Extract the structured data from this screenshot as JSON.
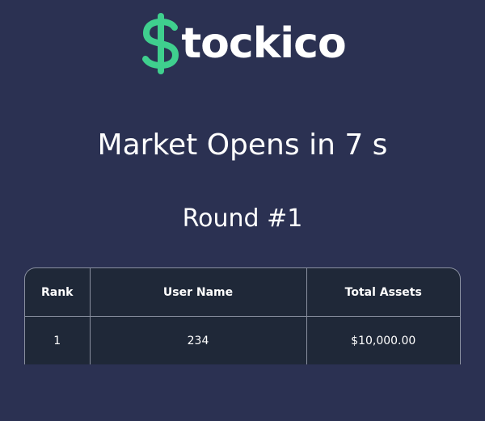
{
  "brand": {
    "name": "tockico",
    "dollar_color": "#3fcf8e",
    "icon": "dollar-sign-icon"
  },
  "status": {
    "headline": "Market Opens in 7 s",
    "round": "Round #1"
  },
  "leaderboard": {
    "columns": [
      "Rank",
      "User Name",
      "Total Assets"
    ],
    "rows": [
      {
        "rank": "1",
        "user": "234",
        "assets": "$10,000.00"
      }
    ]
  },
  "colors": {
    "background": "#2b3152",
    "table_bg": "#1f2838",
    "border": "#8a90a0",
    "accent": "#3fcf8e"
  }
}
